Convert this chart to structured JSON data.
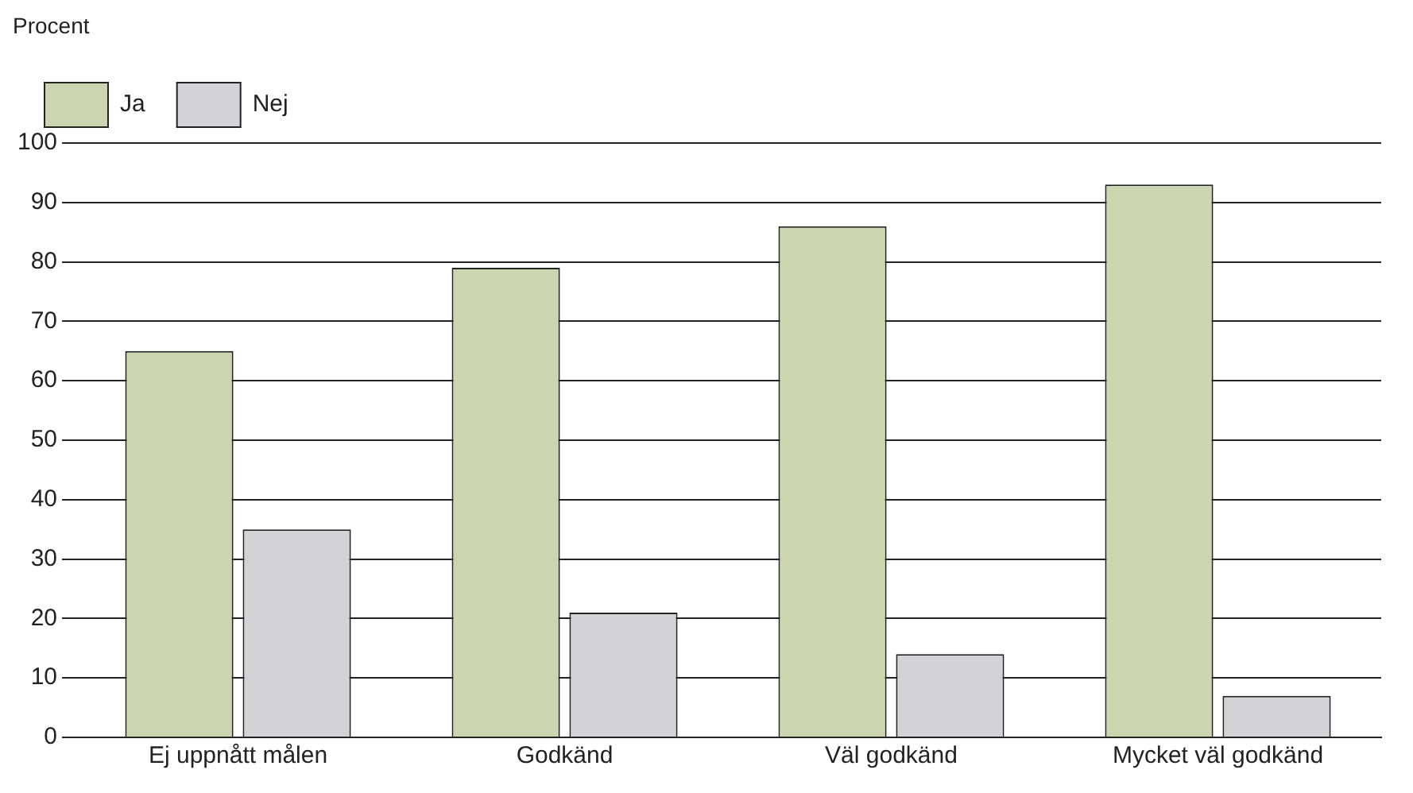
{
  "chart_data": {
    "type": "bar",
    "ylabel": "Procent",
    "categories": [
      "Ej uppnått målen",
      "Godkänd",
      "Väl godkänd",
      "Mycket väl godkänd"
    ],
    "series": [
      {
        "name": "Ja",
        "color": "#ccd5b0",
        "values": [
          65,
          79,
          86,
          93
        ]
      },
      {
        "name": "Nej",
        "color": "#d3d3d6",
        "values": [
          35,
          21,
          14,
          7
        ]
      }
    ],
    "ylim": [
      0,
      100
    ],
    "yticks": [
      0,
      10,
      20,
      30,
      40,
      50,
      60,
      70,
      80,
      90,
      100
    ],
    "grid": "y",
    "legend": "top left"
  }
}
